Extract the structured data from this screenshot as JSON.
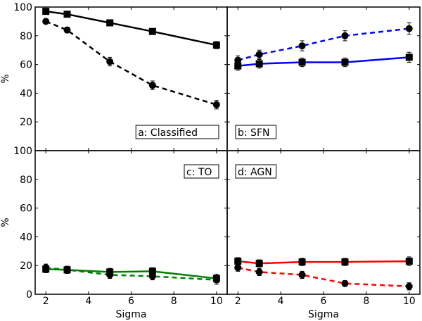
{
  "chart_data": {
    "type": "line",
    "xlabel": "Sigma",
    "ylabel": "%",
    "xlim": [
      1.5,
      10.5
    ],
    "ylim": [
      0,
      100
    ],
    "xticks": [
      2,
      4,
      6,
      8,
      10
    ],
    "yticks": [
      0,
      20,
      40,
      60,
      80,
      100
    ],
    "x": [
      2,
      3,
      5,
      7,
      10
    ],
    "panels": [
      {
        "label": "a: Classified",
        "color": "#000000",
        "label_pos": "bottom-right",
        "series": [
          {
            "style": "solid",
            "marker": "square",
            "values": [
              97,
              95,
              89,
              83,
              73.5
            ],
            "errors": [
              1.5,
              1.5,
              1.5,
              2,
              2.5
            ]
          },
          {
            "style": "dashed",
            "marker": "circle",
            "values": [
              90,
              84,
              62,
              45.5,
              32
            ],
            "errors": [
              1.5,
              2,
              3,
              3,
              3
            ]
          }
        ]
      },
      {
        "label": "b: SFN",
        "color": "#0000ff",
        "label_pos": "bottom-left",
        "series": [
          {
            "style": "solid",
            "marker": "square",
            "values": [
              59,
              60.5,
              61.5,
              61.5,
              65
            ],
            "errors": [
              3,
              3,
              3,
              3,
              3.5
            ]
          },
          {
            "style": "dashed",
            "marker": "circle",
            "values": [
              63,
              67,
              73,
              80,
              85
            ],
            "errors": [
              3,
              3,
              3.5,
              3.5,
              4
            ]
          }
        ]
      },
      {
        "label": "c: TO",
        "color": "#008000",
        "label_pos": "top-right",
        "series": [
          {
            "style": "solid",
            "marker": "square",
            "values": [
              17.5,
              17,
              15.5,
              16,
              11
            ],
            "errors": [
              2.5,
              2.5,
              2.5,
              2.5,
              3
            ]
          },
          {
            "style": "dashed",
            "marker": "circle",
            "values": [
              18.5,
              17,
              13.5,
              12.5,
              10
            ],
            "errors": [
              2.5,
              2.5,
              2.5,
              2.5,
              3
            ]
          }
        ]
      },
      {
        "label": "d: AGN",
        "color": "#ff0000",
        "label_pos": "top-left",
        "series": [
          {
            "style": "solid",
            "marker": "square",
            "values": [
              23,
              21.5,
              22.5,
              22.5,
              23
            ],
            "errors": [
              2.5,
              2.5,
              2.5,
              2.5,
              3
            ]
          },
          {
            "style": "dashed",
            "marker": "circle",
            "values": [
              18.5,
              15.5,
              13.5,
              7.5,
              5.5
            ],
            "errors": [
              2.5,
              2.5,
              2.5,
              2,
              2.5
            ]
          }
        ]
      }
    ]
  }
}
